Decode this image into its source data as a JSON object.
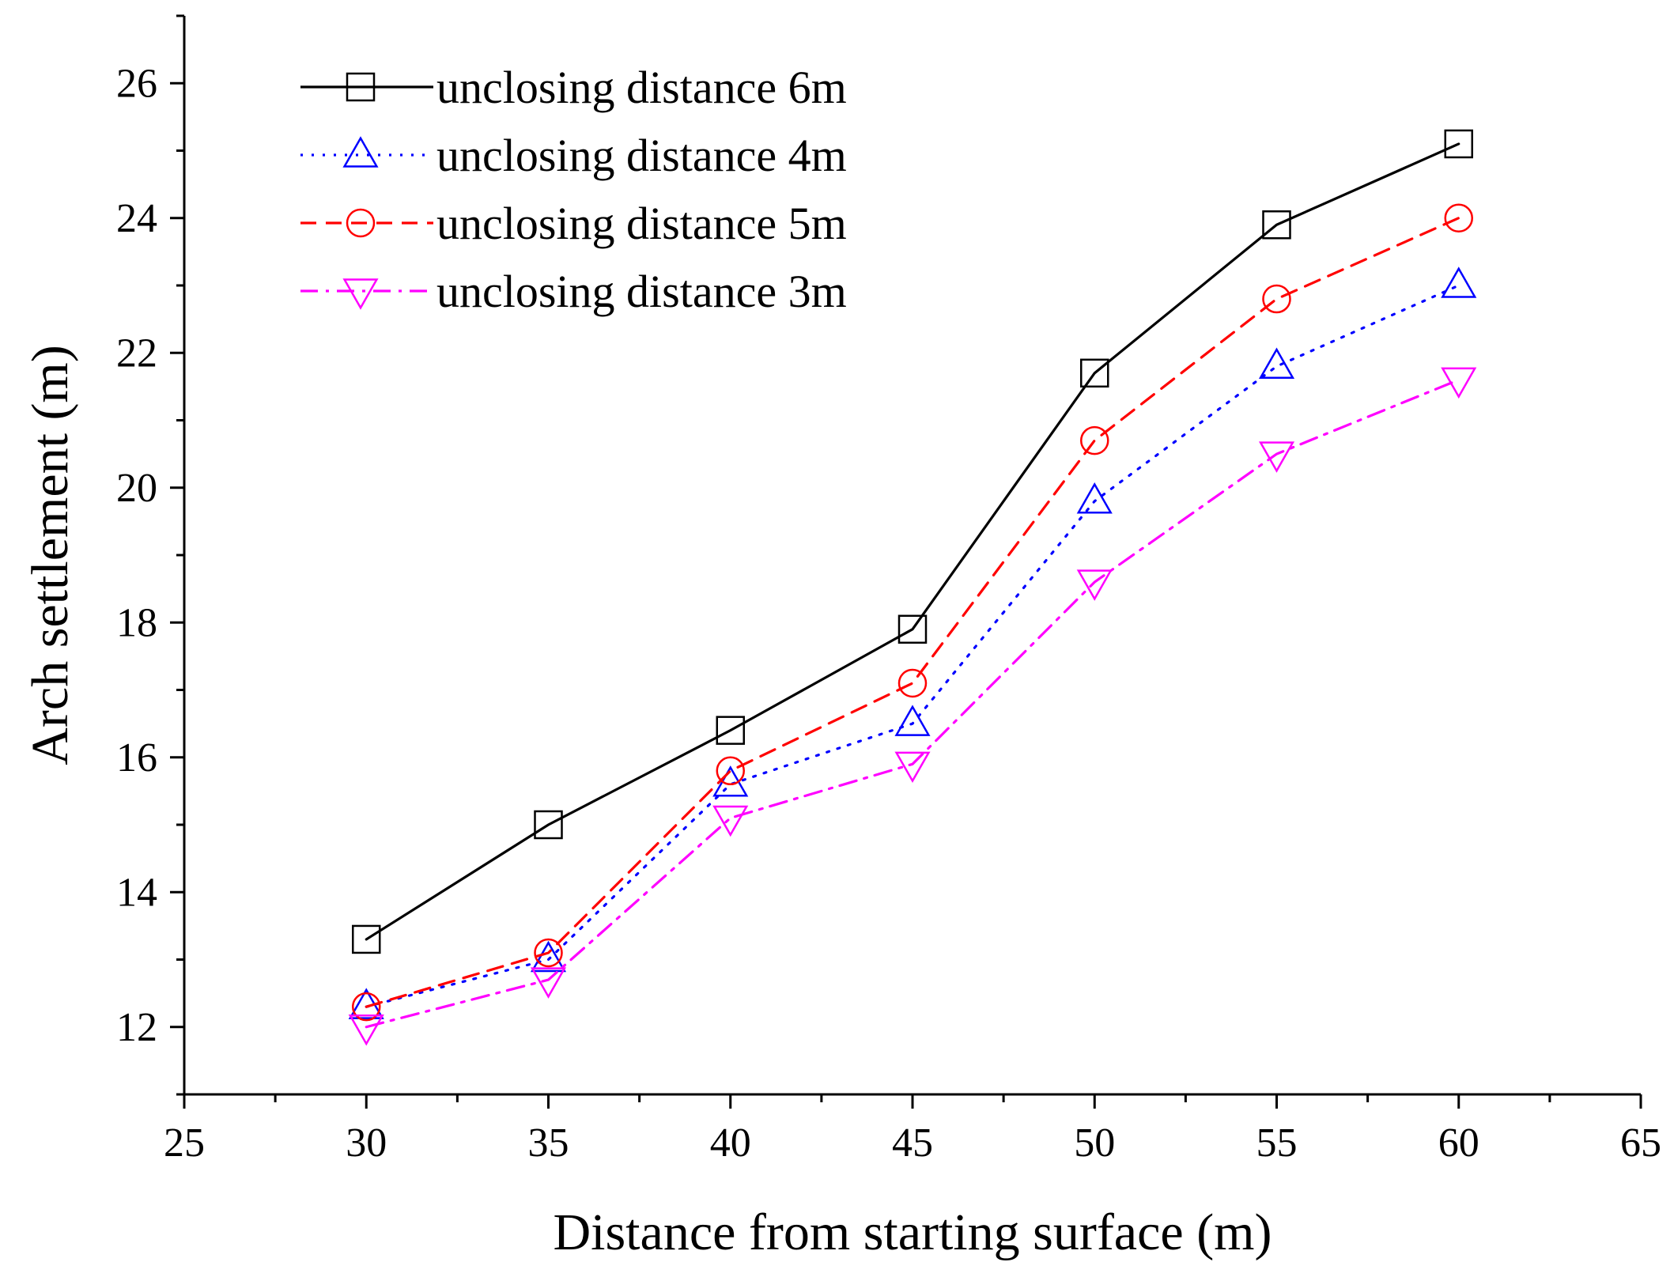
{
  "chart_data": {
    "type": "line",
    "title": "",
    "xlabel": "Distance from starting surface (m)",
    "ylabel": "Arch settlement (m)",
    "xlim": [
      25,
      65
    ],
    "ylim": [
      11,
      27
    ],
    "xticks": [
      25,
      30,
      35,
      40,
      45,
      50,
      55,
      60,
      65
    ],
    "yticks": [
      12,
      14,
      16,
      18,
      20,
      22,
      24,
      26
    ],
    "grid": false,
    "legend_position": "top-left",
    "x": [
      30,
      35,
      40,
      45,
      50,
      55,
      60
    ],
    "series": [
      {
        "name": "unclosing distance 6m",
        "values": [
          13.3,
          15.0,
          16.4,
          17.9,
          21.7,
          23.9,
          25.1
        ],
        "color": "#000000",
        "line_style": "solid",
        "marker": "square"
      },
      {
        "name": "unclosing distance 4m",
        "values": [
          12.3,
          13.0,
          15.6,
          16.5,
          19.8,
          21.8,
          23.0
        ],
        "color": "#0000ff",
        "line_style": "dotted",
        "marker": "triangle-up"
      },
      {
        "name": "unclosing distance 5m",
        "values": [
          12.3,
          13.1,
          15.8,
          17.1,
          20.7,
          22.8,
          24.0
        ],
        "color": "#ff0000",
        "line_style": "dashed",
        "marker": "circle"
      },
      {
        "name": "unclosing distance 3m",
        "values": [
          12.0,
          12.7,
          15.1,
          15.9,
          18.6,
          20.5,
          21.6
        ],
        "color": "#ff00ff",
        "line_style": "dash-dot",
        "marker": "triangle-down"
      }
    ]
  }
}
